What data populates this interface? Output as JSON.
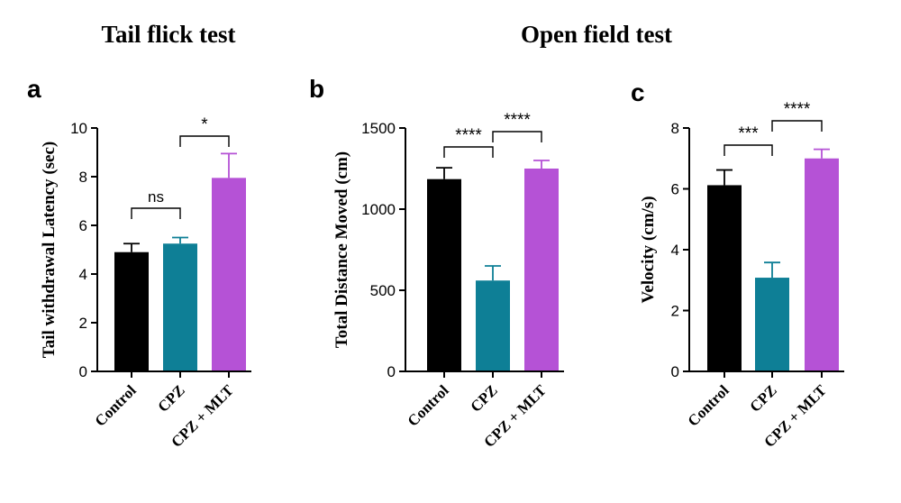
{
  "sections": [
    {
      "id": "tail",
      "title": "Tail flick test"
    },
    {
      "id": "open",
      "title": "Open field test"
    }
  ],
  "colors": {
    "Control": "#000000",
    "CPZ": "#0e7f96",
    "CPZ + MLT": "#b552d6",
    "ns_bracket": "#777777"
  },
  "chart_data": [
    {
      "panel": "a",
      "type": "bar",
      "categories": [
        "Control",
        "CPZ",
        "CPZ + MLT"
      ],
      "values": [
        4.9,
        5.25,
        7.95
      ],
      "errors": [
        0.35,
        0.25,
        1.0
      ],
      "ylabel": "Tail withdrawal Latency (sec)",
      "xlabel": "",
      "ylim": [
        0,
        10
      ],
      "yticks": [
        0,
        2,
        4,
        6,
        8,
        10
      ],
      "grid": false,
      "comparisons": [
        {
          "from": 0,
          "to": 1,
          "label": "ns"
        },
        {
          "from": 1,
          "to": 2,
          "label": "*"
        }
      ]
    },
    {
      "panel": "b",
      "type": "bar",
      "categories": [
        "Control",
        "CPZ",
        "CPZ + MLT"
      ],
      "values": [
        1185,
        560,
        1250
      ],
      "errors": [
        70,
        90,
        50
      ],
      "ylabel": "Total Distance Moved (cm)",
      "xlabel": "",
      "ylim": [
        0,
        1500
      ],
      "yticks": [
        0,
        500,
        1000,
        1500
      ],
      "grid": false,
      "comparisons": [
        {
          "from": 0,
          "to": 1,
          "label": "****"
        },
        {
          "from": 1,
          "to": 2,
          "label": "****"
        }
      ]
    },
    {
      "panel": "c",
      "type": "bar",
      "categories": [
        "Control",
        "CPZ",
        "CPZ + MLT"
      ],
      "values": [
        6.12,
        3.08,
        7.0
      ],
      "errors": [
        0.5,
        0.5,
        0.3
      ],
      "ylabel": "Velocity (cm/s)",
      "xlabel": "",
      "ylim": [
        0,
        8
      ],
      "yticks": [
        0,
        2,
        4,
        6,
        8
      ],
      "grid": false,
      "comparisons": [
        {
          "from": 0,
          "to": 1,
          "label": "***"
        },
        {
          "from": 1,
          "to": 2,
          "label": "****"
        }
      ]
    }
  ]
}
